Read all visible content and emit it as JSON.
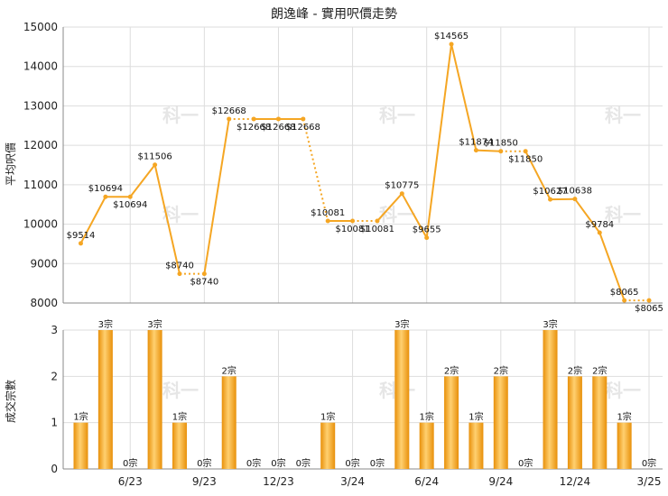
{
  "chart_data": [
    {
      "type": "line",
      "title": "朗逸峰 - 實用呎價走勢",
      "ylabel": "平均呎價",
      "ylim": [
        8000,
        15000
      ],
      "yticks": [
        8000,
        9000,
        10000,
        11000,
        12000,
        13000,
        14000,
        15000
      ],
      "grid": true,
      "x_tick_labels": [
        "6/23",
        "9/23",
        "12/23",
        "3/24",
        "6/24",
        "9/24",
        "12/24",
        "3/25"
      ],
      "values": [
        9514,
        10694,
        10694,
        11506,
        8740,
        8740,
        12668,
        12668,
        12668,
        12668,
        10081,
        10081,
        10081,
        10775,
        9655,
        14565,
        11874,
        11850,
        11850,
        10627,
        10638,
        9784,
        8065,
        8065
      ],
      "data_labels": [
        "$9514",
        "$10694",
        "$10694",
        "$11506",
        "$8740",
        "$8740",
        "$12668",
        "$12668",
        "$12668",
        "$12668",
        "$10081",
        "$10081",
        "$10081",
        "$10775",
        "$9655",
        "$14565",
        "$11874",
        "$11850",
        "$11850",
        "$10627",
        "$10638",
        "$9784",
        "$8065",
        "$8065"
      ],
      "dotted_segments": [
        4,
        6,
        9,
        11,
        17,
        22
      ],
      "line_color": "#f5a623"
    },
    {
      "type": "bar",
      "ylabel": "成交宗數",
      "ylim": [
        0,
        3
      ],
      "yticks": [
        0,
        1,
        2,
        3
      ],
      "grid": true,
      "values": [
        1,
        3,
        0,
        3,
        1,
        0,
        2,
        0,
        0,
        0,
        1,
        0,
        0,
        3,
        1,
        2,
        1,
        2,
        0,
        3,
        2,
        2,
        1,
        0
      ],
      "data_labels": [
        "1宗",
        "3宗",
        "0宗",
        "3宗",
        "1宗",
        "0宗",
        "2宗",
        "0宗",
        "0宗",
        "0宗",
        "1宗",
        "0宗",
        "0宗",
        "3宗",
        "1宗",
        "2宗",
        "1宗",
        "2宗",
        "0宗",
        "3宗",
        "2宗",
        "2宗",
        "1宗",
        "0宗"
      ],
      "bar_color": "#f5a623"
    }
  ],
  "watermark": "科一"
}
